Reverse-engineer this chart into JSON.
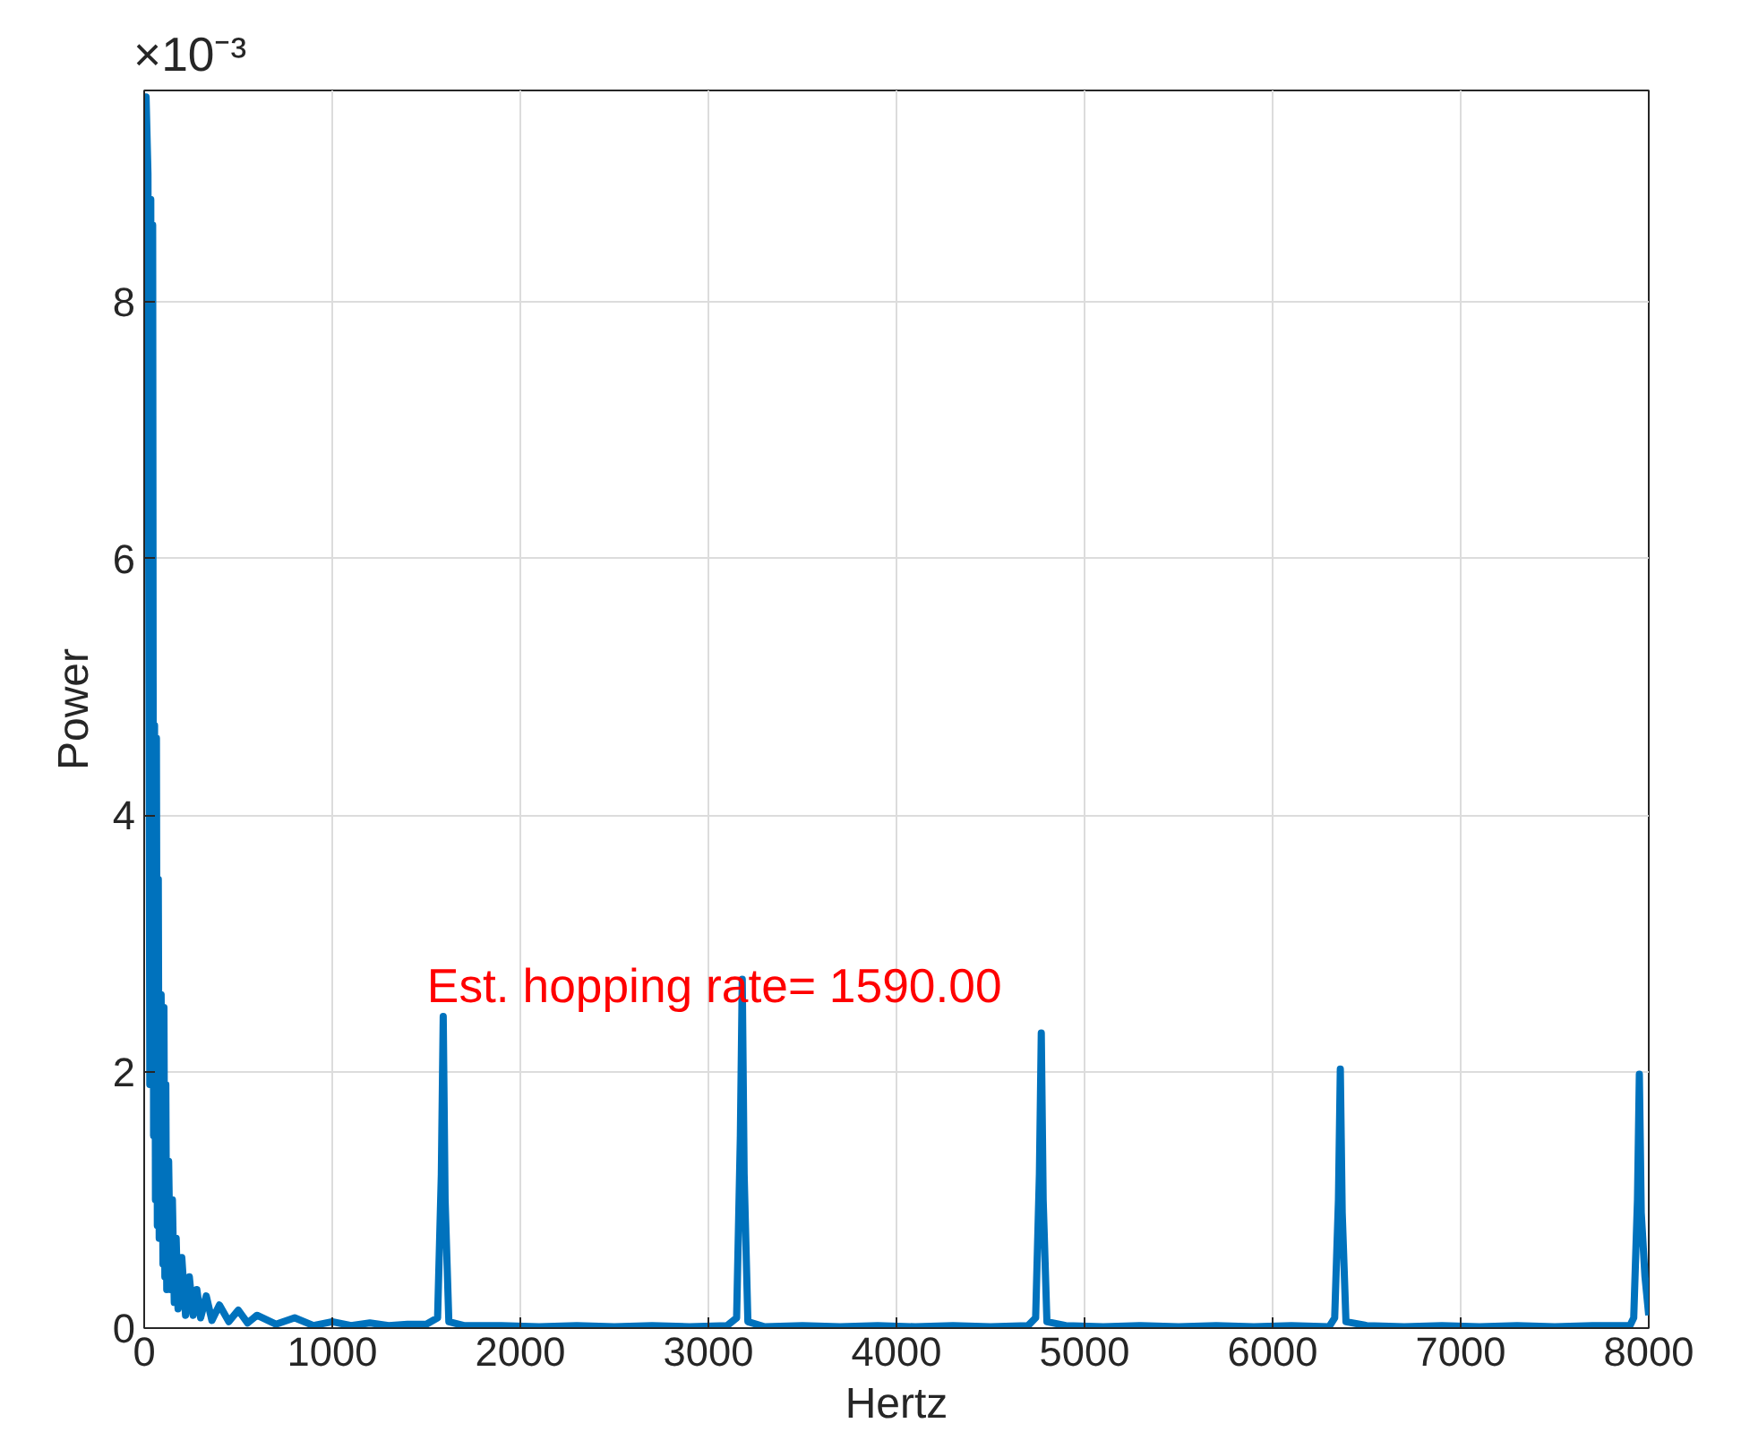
{
  "chart_data": {
    "type": "line",
    "xlabel": "Hertz",
    "ylabel": "Power",
    "xlim": [
      0,
      8000
    ],
    "xticks": [
      0,
      1000,
      2000,
      3000,
      4000,
      5000,
      6000,
      7000,
      8000
    ],
    "ylim": [
      0,
      9.65
    ],
    "yticks": [
      0,
      2,
      4,
      6,
      8
    ],
    "grid": true,
    "marker": "none",
    "line_style": "solid",
    "annotations": [
      "×10⁻³",
      "Est. hopping rate= 1590.00"
    ],
    "series": [
      {
        "color": "#0072bd",
        "x": [
          0,
          10,
          20,
          30,
          35,
          40,
          45,
          50,
          55,
          60,
          65,
          70,
          75,
          80,
          90,
          100,
          105,
          110,
          115,
          120,
          130,
          140,
          150,
          160,
          170,
          180,
          200,
          220,
          240,
          260,
          280,
          300,
          330,
          360,
          400,
          450,
          500,
          550,
          600,
          700,
          800,
          900,
          1000,
          1100,
          1200,
          1300,
          1400,
          1500,
          1560,
          1580,
          1590,
          1600,
          1620,
          1700,
          1900,
          2100,
          2300,
          2500,
          2700,
          2900,
          3100,
          3150,
          3170,
          3180,
          3190,
          3210,
          3300,
          3500,
          3700,
          3900,
          4100,
          4300,
          4500,
          4700,
          4740,
          4760,
          4770,
          4780,
          4800,
          4900,
          5100,
          5300,
          5500,
          5700,
          5900,
          6100,
          6300,
          6330,
          6350,
          6360,
          6370,
          6390,
          6500,
          6700,
          6900,
          7100,
          7300,
          7500,
          7700,
          7900,
          7920,
          7940,
          7950,
          7960,
          7980,
          8000
        ],
        "values": [
          9.6,
          9.6,
          9.0,
          1.9,
          8.8,
          2.0,
          8.6,
          1.5,
          4.7,
          1.0,
          4.6,
          0.8,
          3.5,
          0.7,
          2.6,
          0.5,
          2.5,
          0.4,
          1.9,
          0.3,
          1.3,
          0.3,
          1.0,
          0.2,
          0.7,
          0.15,
          0.55,
          0.1,
          0.4,
          0.1,
          0.3,
          0.08,
          0.25,
          0.06,
          0.18,
          0.05,
          0.14,
          0.04,
          0.1,
          0.03,
          0.08,
          0.02,
          0.05,
          0.02,
          0.04,
          0.02,
          0.03,
          0.03,
          0.08,
          1.2,
          2.43,
          1.0,
          0.05,
          0.02,
          0.02,
          0.01,
          0.02,
          0.01,
          0.02,
          0.01,
          0.02,
          0.08,
          1.5,
          2.72,
          1.2,
          0.05,
          0.01,
          0.02,
          0.01,
          0.02,
          0.01,
          0.02,
          0.01,
          0.02,
          0.08,
          1.2,
          2.3,
          1.0,
          0.05,
          0.02,
          0.01,
          0.02,
          0.01,
          0.02,
          0.01,
          0.02,
          0.01,
          0.08,
          1.0,
          2.02,
          0.9,
          0.05,
          0.02,
          0.01,
          0.02,
          0.01,
          0.02,
          0.01,
          0.02,
          0.02,
          0.08,
          1.0,
          1.98,
          0.9,
          0.4,
          0.1
        ]
      }
    ]
  }
}
